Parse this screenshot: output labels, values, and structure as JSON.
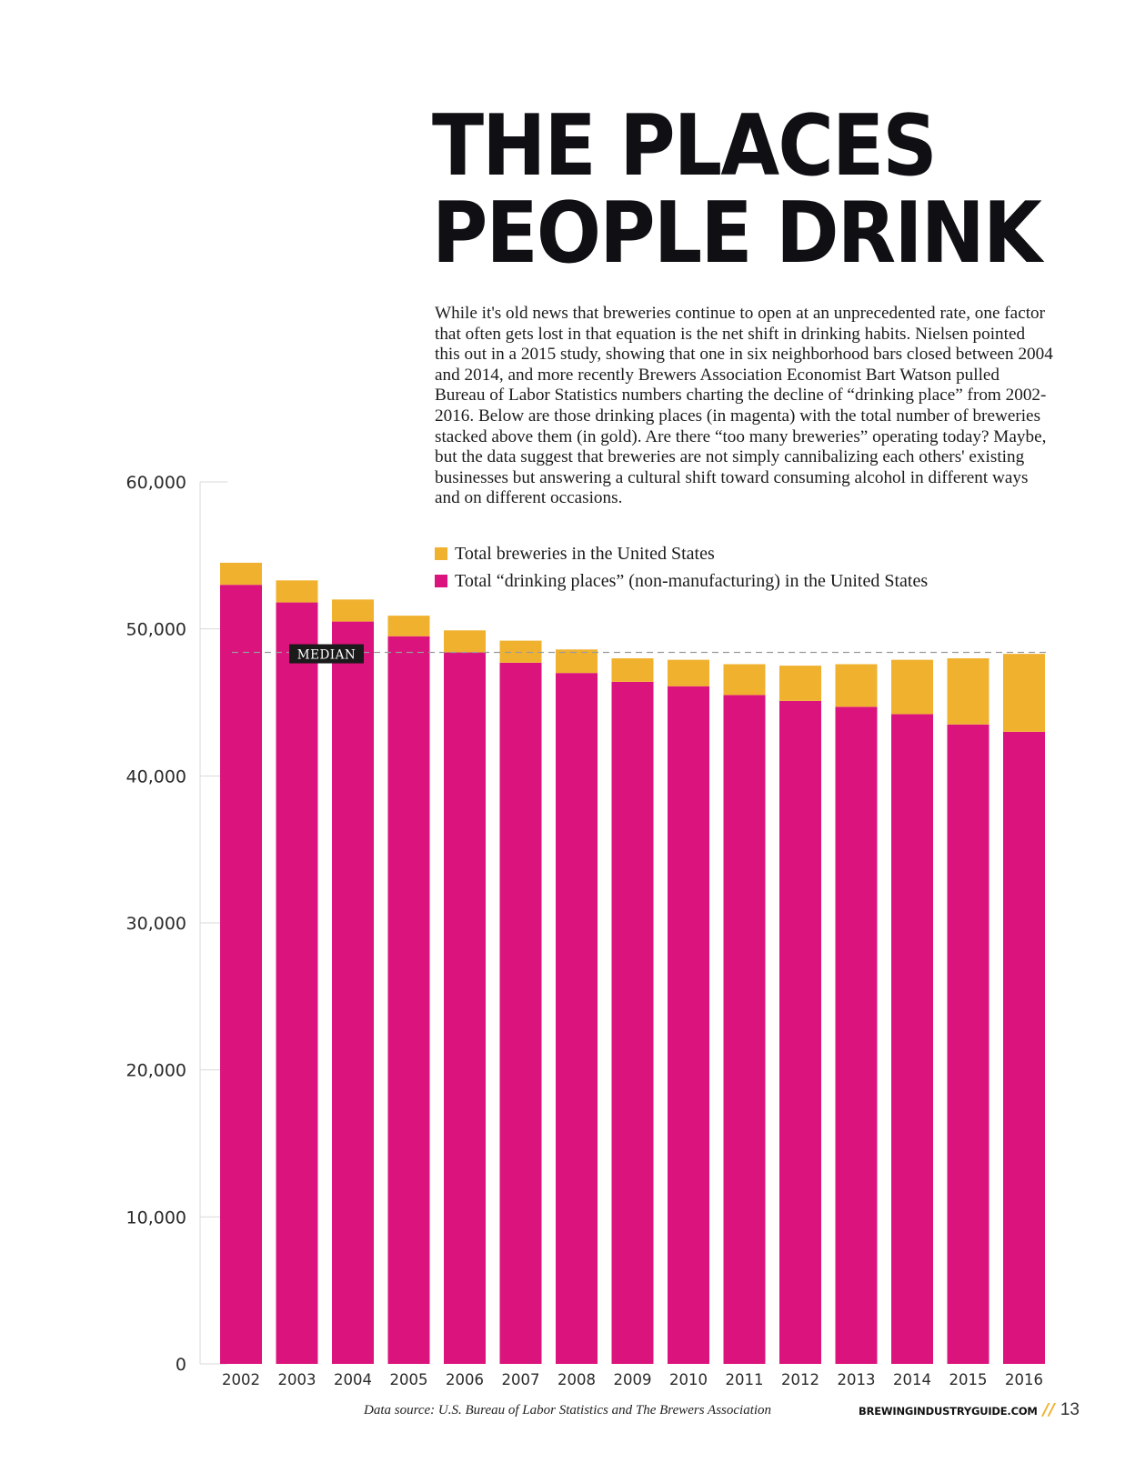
{
  "headline": {
    "line1": "THE PLACES",
    "line2": "PEOPLE DRINK"
  },
  "intro": "While it's old news that breweries continue to open at an unprecedented rate, one factor that often gets lost in that equation is the net shift in drinking habits. Nielsen pointed this out in a 2015 study, showing that one in six neighborhood bars closed between 2004 and 2014, and more recently Brewers Association Economist Bart Watson pulled Bureau of Labor Statistics numbers charting the decline of “drinking place” from 2002-2016. Below are those drinking places (in magenta) with the total number of breweries stacked above them (in gold). Are there “too many breweries” operating today? Maybe, but the data suggest that breweries are not simply cannibalizing each others' existing businesses but answering a cultural shift toward consuming alcohol in different ways and on different occasions.",
  "legend": [
    {
      "label": "Total breweries in the United States",
      "color": "#f0b12e"
    },
    {
      "label": "Total “drinking places” (non-manufacturing) in the United States",
      "color": "#db137c"
    }
  ],
  "footer": {
    "source": "Data source: U.S. Bureau of Labor Statistics and The Brewers Association",
    "site": "BREWINGINDUSTRYGUIDE.COM",
    "slashes": "//",
    "page": "13"
  },
  "chart_data": {
    "type": "bar",
    "stacked": true,
    "categories": [
      "2002",
      "2003",
      "2004",
      "2005",
      "2006",
      "2007",
      "2008",
      "2009",
      "2010",
      "2011",
      "2012",
      "2013",
      "2014",
      "2015",
      "2016"
    ],
    "series": [
      {
        "name": "Total “drinking places” (non-manufacturing) in the United States",
        "color": "#db137c",
        "values": [
          53000,
          51800,
          50500,
          49500,
          48400,
          47700,
          47000,
          46400,
          46100,
          45500,
          45100,
          44700,
          44200,
          43500,
          43000
        ]
      },
      {
        "name": "Total breweries in the United States",
        "color": "#f0b12e",
        "values": [
          1500,
          1500,
          1500,
          1400,
          1500,
          1500,
          1600,
          1600,
          1800,
          2100,
          2400,
          2900,
          3700,
          4500,
          5300
        ]
      }
    ],
    "ylim": [
      0,
      60000
    ],
    "yticks": [
      0,
      10000,
      20000,
      30000,
      40000,
      50000,
      60000
    ],
    "ytick_labels": [
      "0",
      "10,000",
      "20,000",
      "30,000",
      "40,000",
      "50,000",
      "60,000"
    ],
    "grid": true,
    "median": {
      "label": "MEDIAN",
      "value": 48400
    },
    "colors": {
      "grid": "#d9d9d9",
      "median_line": "#9a9a9a",
      "median_tag_bg": "#1a1a1a",
      "median_tag_text": "#ffffff",
      "tick_text": "#2a2a2a"
    }
  }
}
